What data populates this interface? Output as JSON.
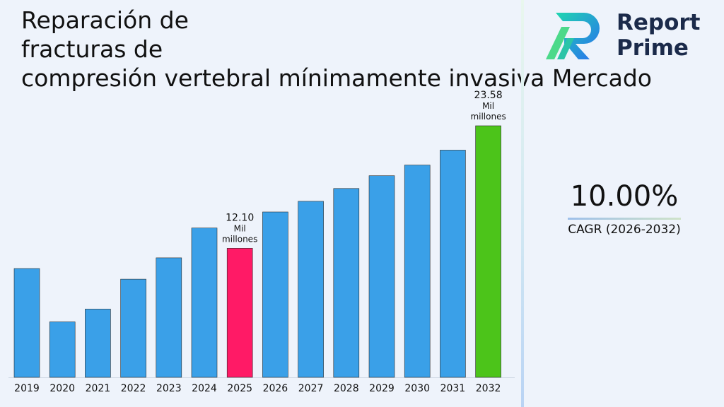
{
  "title": {
    "lines": [
      "Reparación de",
      "fracturas de",
      "compresión vertebral mínimamente invasiva Mercado"
    ]
  },
  "logo": {
    "line1": "Report",
    "line2": "Prime",
    "icon": "report-prime-logo-icon"
  },
  "cagr": {
    "value": "10.00%",
    "label": "CAGR (2026-2032)"
  },
  "colors": {
    "bar": "#3aa0e8",
    "highlight_2025": "#ff1a66",
    "highlight_2032": "#4cc41a"
  },
  "chart_data": {
    "type": "bar",
    "title": "Reparación de fracturas de compresión vertebral mínimamente invasiva Mercado",
    "categories": [
      "2019",
      "2020",
      "2021",
      "2022",
      "2023",
      "2024",
      "2025",
      "2026",
      "2027",
      "2028",
      "2029",
      "2030",
      "2031",
      "2032"
    ],
    "values": [
      10.2,
      5.2,
      6.4,
      9.2,
      11.2,
      14.0,
      12.1,
      15.5,
      16.5,
      17.7,
      18.9,
      19.9,
      21.3,
      23.58
    ],
    "value_labels": {
      "6": [
        "12.10",
        "Mil",
        "millones"
      ],
      "13": [
        "23.58",
        "Mil",
        "millones"
      ]
    },
    "highlight_colors": {
      "6": "#ff1a66",
      "13": "#4cc41a"
    },
    "ylim": [
      0,
      24
    ],
    "xlabel": "",
    "ylabel": "",
    "grid": false,
    "legend": "none"
  }
}
